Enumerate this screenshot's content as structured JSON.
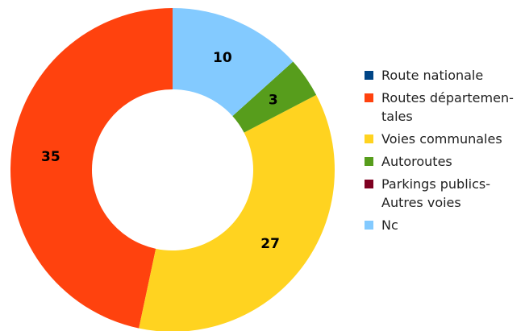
{
  "chart_data": {
    "type": "donut",
    "categories": [
      "Route nationale",
      "Routes départemen-\ntales",
      "Voies communales",
      "Autoroutes",
      "Parkings publics-\nAutres voies",
      "Nc"
    ],
    "values": [
      0,
      35,
      27,
      3,
      0,
      10
    ],
    "colors": [
      "#004586",
      "#ff420e",
      "#ffd320",
      "#579d1c",
      "#7e0021",
      "#83caff"
    ],
    "legend": "right"
  }
}
